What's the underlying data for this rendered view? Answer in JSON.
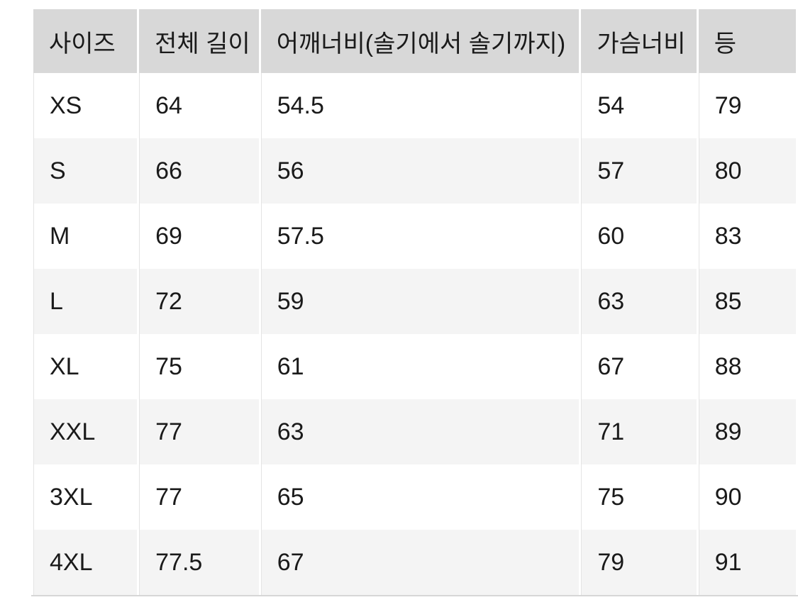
{
  "chart_data": {
    "type": "table",
    "columns": [
      "사이즈",
      "전체 길이",
      "어깨너비(솔기에서 솔기까지)",
      "가슴너비",
      "등"
    ],
    "rows": [
      [
        "XS",
        "64",
        "54.5",
        "54",
        "79"
      ],
      [
        "S",
        "66",
        "56",
        "57",
        "80"
      ],
      [
        "M",
        "69",
        "57.5",
        "60",
        "83"
      ],
      [
        "L",
        "72",
        "59",
        "63",
        "85"
      ],
      [
        "XL",
        "75",
        "61",
        "67",
        "88"
      ],
      [
        "XXL",
        "77",
        "63",
        "71",
        "89"
      ],
      [
        "3XL",
        "77",
        "65",
        "75",
        "90"
      ],
      [
        "4XL",
        "77.5",
        "67",
        "79",
        "91"
      ]
    ],
    "layout_hints": {
      "last_column_clipped_at_right_edge": true,
      "row_striping": "alternating starting with white"
    }
  },
  "colors": {
    "header_bg": "#d8d8d8",
    "stripe_row_bg": "#f4f4f4",
    "plain_row_bg": "#ffffff",
    "column_divider": "#e4e4e4",
    "bottom_border": "#d6d6d6",
    "text": "#1a1a1a"
  }
}
